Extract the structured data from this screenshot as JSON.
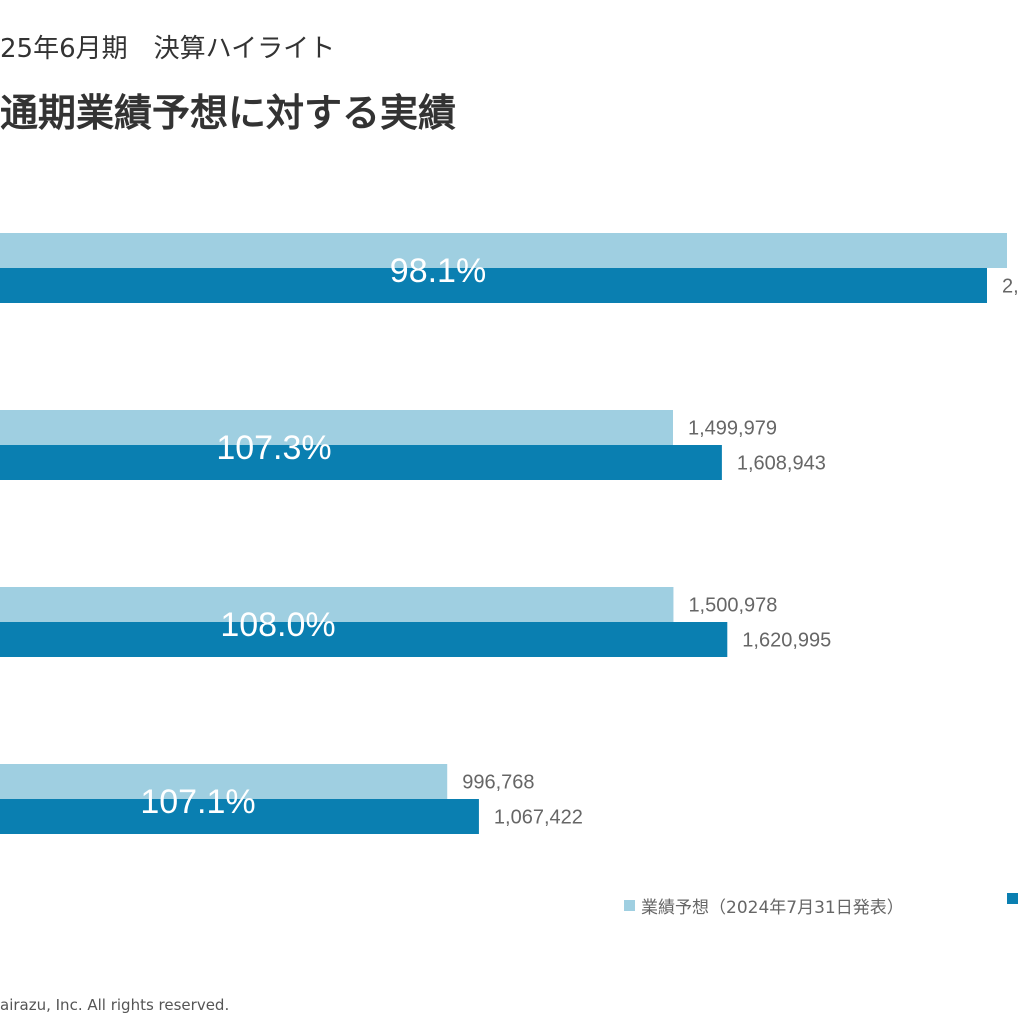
{
  "header": {
    "subtitle": "25年6月期　決算ハイライト",
    "title": "通期業績予想に対する実績"
  },
  "legend": {
    "forecast_label": "業績予想（2024年7月31日発表）",
    "actual_label": ""
  },
  "footer": {
    "copyright": "airazu, Inc. All rights reserved."
  },
  "colors": {
    "forecast": "#9fcfe1",
    "actual": "#0a7fb1",
    "ratio_text": "#ffffff",
    "value_text": "#666666"
  },
  "chart_data": {
    "type": "bar",
    "orientation": "horizontal",
    "series": [
      {
        "name": "業績予想（2024年7月31日発表）",
        "values": [
          null,
          1499979,
          1500978,
          996768
        ],
        "labels": [
          "",
          "1,499,979",
          "1,500,978",
          "996,768"
        ]
      },
      {
        "name": "",
        "values": [
          null,
          1608943,
          1620995,
          1067422
        ],
        "labels": [
          "2,",
          "1,608,943",
          "1,620,995",
          "1,067,422"
        ]
      }
    ],
    "ratios": [
      "98.1%",
      "107.3%",
      "108.0%",
      "107.1%"
    ],
    "xlim": [
      0,
      2250000
    ]
  }
}
